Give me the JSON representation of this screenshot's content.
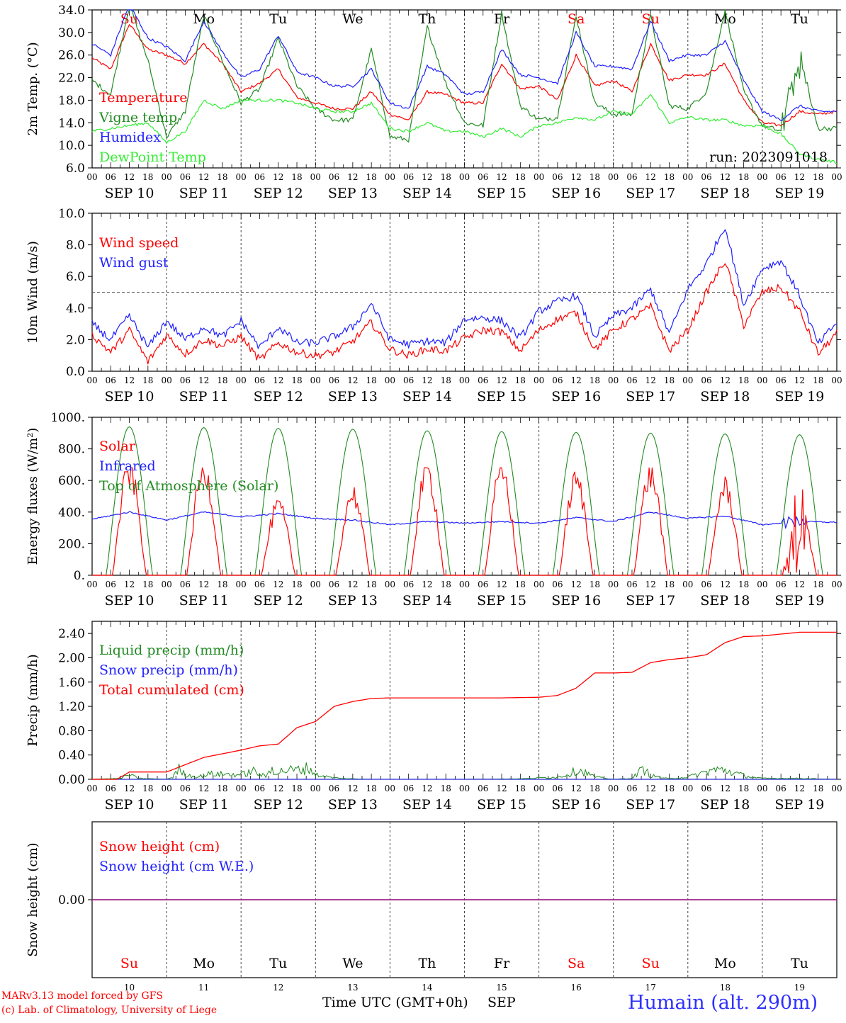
{
  "run_label": "run: 2023091018",
  "day_abbr": [
    "Su",
    "Mo",
    "Tu",
    "We",
    "Th",
    "Fr",
    "Sa",
    "Su",
    "Mo",
    "Tu"
  ],
  "weekend_flags": [
    true,
    false,
    false,
    false,
    false,
    false,
    true,
    true,
    false,
    false
  ],
  "date_labels": [
    "SEP 10",
    "SEP 11",
    "SEP 12",
    "SEP 13",
    "SEP 14",
    "SEP 15",
    "SEP 16",
    "SEP 17",
    "SEP 18",
    "SEP 19"
  ],
  "bottom_day_numbers": [
    "10",
    "11",
    "12",
    "13",
    "14",
    "15",
    "16",
    "17",
    "18",
    "19"
  ],
  "hour_labels": [
    "00",
    "06",
    "12",
    "18"
  ],
  "last_hour_label": "00",
  "footer": {
    "credit_line1": "MARv3.13 model forced by GFS",
    "credit_line2": "(c) Lab. of Climatology, University of Liege",
    "xaxis_label": "Time UTC (GMT+0h)",
    "month": "SEP",
    "station": "Humain (alt. 290m)"
  },
  "colors": {
    "red": "#ff0000",
    "green": "#228b22",
    "blue": "#2020ff",
    "lightgreen": "#33ee33",
    "purple": "#7a1fa0",
    "weekend": "#ff0000"
  },
  "chart_data": [
    {
      "id": "temp",
      "type": "line",
      "ylabel": "2m Temp. (°C)",
      "ylim": [
        6,
        34
      ],
      "yticks": [
        "34.0",
        "30.0",
        "26.0",
        "22.0",
        "18.0",
        "14.0",
        "10.0",
        "6.0"
      ],
      "ytick_values": [
        34,
        30,
        26,
        22,
        18,
        14,
        10,
        6
      ],
      "x_unit": "hours since SEP 10 00 UTC",
      "x": [
        0,
        6,
        12,
        18,
        24,
        30,
        36,
        42,
        48,
        54,
        60,
        66,
        72,
        78,
        84,
        90,
        96,
        102,
        108,
        114,
        120,
        126,
        132,
        138,
        144,
        150,
        156,
        162,
        168,
        174,
        180,
        186,
        192,
        198,
        204,
        210,
        216,
        222,
        228,
        234,
        240
      ],
      "series": [
        {
          "name": "Temperature",
          "color": "#ff0000",
          "values": [
            25.5,
            23.5,
            31.5,
            27,
            26,
            24.5,
            28,
            24.5,
            19.5,
            21,
            23.5,
            18.5,
            17.5,
            16.5,
            16.5,
            19.5,
            15.5,
            14.5,
            19.5,
            19,
            17.5,
            17.5,
            24.5,
            20,
            20.5,
            18,
            26,
            20.5,
            21.5,
            19.5,
            28,
            21.5,
            22.5,
            22.5,
            24.5,
            18,
            14,
            13.5,
            16,
            15.5,
            16
          ]
        },
        {
          "name": "Vigne temp",
          "color": "#228b22",
          "values": [
            21.5,
            19,
            35,
            25,
            11.5,
            16,
            33,
            25,
            17.5,
            20,
            29,
            20.5,
            16.5,
            14.5,
            14.5,
            27,
            11.5,
            11,
            31,
            21,
            14,
            13.5,
            33.5,
            17,
            14.5,
            15,
            33,
            17.5,
            15.5,
            15.5,
            33,
            17,
            16.5,
            19.5,
            34,
            19.5,
            13.5,
            12.5,
            25,
            13,
            13
          ]
        },
        {
          "name": "Humidex",
          "color": "#2020ff",
          "values": [
            28,
            26,
            35,
            29,
            27.5,
            25,
            32,
            26.5,
            22,
            23.5,
            29.5,
            23,
            22,
            20.5,
            20.5,
            23.5,
            17.5,
            16.5,
            24,
            22.5,
            19,
            19.5,
            27,
            22.5,
            22,
            21,
            30,
            24,
            24,
            23.5,
            32,
            25,
            26,
            26,
            28.5,
            21.5,
            16,
            14.5,
            17,
            16,
            16
          ]
        },
        {
          "name": "DewPoint Temp",
          "color": "#33ee33",
          "values": [
            12.5,
            13,
            13.5,
            14,
            10.5,
            12.5,
            18,
            16.5,
            18,
            18,
            18,
            17.5,
            16.5,
            16,
            16,
            17.5,
            13,
            12.5,
            14,
            12.5,
            12.5,
            11.5,
            13,
            11.5,
            13.5,
            14,
            15,
            14.5,
            16,
            15.5,
            19,
            14,
            15,
            14.5,
            14.5,
            13.5,
            13.5,
            12,
            8.5,
            7.5,
            7
          ]
        }
      ],
      "legend": [
        "Temperature",
        "Vigne temp",
        "Humidex",
        "DewPoint Temp"
      ],
      "legend_position": "left"
    },
    {
      "id": "wind",
      "type": "line",
      "ylabel": "10m Wind (m/s)",
      "ylim": [
        0,
        10
      ],
      "yticks": [
        "10.0",
        "8.0",
        "6.0",
        "4.0",
        "2.0",
        "0.0"
      ],
      "ytick_values": [
        10,
        8,
        6,
        4,
        2,
        0
      ],
      "x_unit": "hours since SEP 10 00 UTC",
      "reference_line": 5,
      "x": [
        0,
        6,
        12,
        18,
        24,
        30,
        36,
        42,
        48,
        54,
        60,
        66,
        72,
        78,
        84,
        90,
        96,
        102,
        108,
        114,
        120,
        126,
        132,
        138,
        144,
        150,
        156,
        162,
        168,
        174,
        180,
        186,
        192,
        198,
        204,
        210,
        216,
        222,
        228,
        234,
        240
      ],
      "series": [
        {
          "name": "Wind speed",
          "color": "#ff0000",
          "values": [
            2.3,
            1.2,
            2.6,
            0.6,
            2.3,
            1.1,
            2.0,
            1.6,
            2.2,
            0.7,
            1.8,
            1.2,
            1.0,
            1.2,
            1.9,
            3.1,
            1.4,
            1.0,
            1.4,
            1.3,
            2.1,
            2.6,
            2.5,
            1.3,
            2.6,
            3.3,
            3.7,
            1.4,
            2.6,
            3.3,
            4.1,
            1.3,
            2.6,
            5.0,
            7.0,
            2.9,
            5.0,
            5.3,
            3.8,
            1.1,
            2.4
          ]
        },
        {
          "name": "Wind gust",
          "color": "#2020ff",
          "values": [
            3.0,
            2.0,
            3.5,
            1.5,
            3.2,
            2.0,
            2.8,
            2.2,
            3.2,
            1.5,
            2.8,
            1.8,
            1.8,
            2.2,
            2.8,
            4.3,
            2.0,
            1.7,
            1.9,
            1.8,
            3.3,
            3.4,
            3.2,
            2.1,
            3.8,
            4.4,
            4.8,
            2.2,
            3.5,
            4.0,
            5.2,
            2.4,
            5.2,
            6.8,
            9.2,
            4.2,
            6.5,
            7.0,
            4.8,
            1.7,
            3.1
          ]
        }
      ],
      "legend": [
        "Wind speed",
        "Wind gust"
      ],
      "legend_position": "left"
    },
    {
      "id": "energy",
      "type": "line",
      "ylabel": "Energy fluxes (W/m²)",
      "ylim": [
        0,
        1000
      ],
      "yticks": [
        "1000.",
        "800.",
        "600.",
        "400.",
        "200.",
        "0."
      ],
      "ytick_values": [
        1000,
        800,
        600,
        400,
        200,
        0
      ],
      "x_unit": "hours since SEP 10 00 UTC",
      "solar_peaks": [
        650,
        660,
        430,
        510,
        650,
        650,
        590,
        630,
        550,
        640
      ],
      "toa_peaks": [
        940,
        935,
        930,
        925,
        915,
        910,
        905,
        900,
        895,
        890
      ],
      "infrared_x": [
        0,
        12,
        24,
        36,
        48,
        60,
        72,
        84,
        96,
        108,
        120,
        132,
        144,
        156,
        168,
        180,
        192,
        204,
        216,
        228,
        240
      ],
      "infrared_values": [
        355,
        400,
        350,
        400,
        370,
        390,
        360,
        350,
        320,
        340,
        330,
        340,
        330,
        365,
        340,
        400,
        360,
        375,
        320,
        340,
        335
      ],
      "series": [
        {
          "name": "Solar",
          "color": "#ff0000"
        },
        {
          "name": "Infrared",
          "color": "#2020ff"
        },
        {
          "name": "Top of Atmosphere (Solar)",
          "color": "#228b22"
        }
      ],
      "legend": [
        "Solar",
        "Infrared",
        "Top of Atmosphere (Solar)"
      ],
      "legend_position": "left"
    },
    {
      "id": "precip",
      "type": "line",
      "ylabel": "Precip (mm/h)",
      "ylim": [
        0,
        2.6
      ],
      "yticks": [
        "2.40",
        "2.00",
        "1.60",
        "1.20",
        "0.80",
        "0.40",
        "0.00"
      ],
      "ytick_values": [
        2.4,
        2.0,
        1.6,
        1.2,
        0.8,
        0.4,
        0.0
      ],
      "x_unit": "hours since SEP 10 00 UTC",
      "cumulated_x": [
        0,
        8,
        12,
        24,
        36,
        48,
        54,
        60,
        66,
        72,
        78,
        84,
        90,
        96,
        108,
        120,
        132,
        144,
        150,
        156,
        162,
        168,
        174,
        180,
        186,
        192,
        198,
        204,
        210,
        216,
        228,
        240
      ],
      "cumulated_values": [
        0,
        0,
        0.12,
        0.12,
        0.36,
        0.48,
        0.55,
        0.58,
        0.85,
        0.95,
        1.2,
        1.28,
        1.33,
        1.34,
        1.34,
        1.34,
        1.34,
        1.35,
        1.38,
        1.5,
        1.75,
        1.75,
        1.76,
        1.92,
        1.97,
        2.0,
        2.05,
        2.25,
        2.35,
        2.36,
        2.42,
        2.42
      ],
      "liquid_x": [
        0,
        9,
        12,
        15,
        24,
        26,
        28,
        30,
        34,
        38,
        48,
        52,
        56,
        58,
        60,
        62,
        66,
        70,
        72,
        76,
        80,
        84,
        90,
        96,
        108,
        120,
        138,
        150,
        154,
        156,
        158,
        162,
        168,
        174,
        176,
        178,
        180,
        186,
        192,
        196,
        200,
        204,
        208,
        212,
        216,
        228,
        240
      ],
      "liquid_values": [
        0,
        0.02,
        0.1,
        0.02,
        0,
        0.05,
        0.22,
        0.1,
        0.05,
        0.12,
        0.1,
        0.18,
        0.05,
        0.25,
        0.15,
        0.2,
        0.2,
        0.25,
        0.1,
        0.05,
        0.02,
        0.01,
        0,
        0,
        0,
        0,
        0.01,
        0.05,
        0.12,
        0.2,
        0.18,
        0.05,
        0,
        0.02,
        0.15,
        0.22,
        0.08,
        0.01,
        0.05,
        0.12,
        0.2,
        0.2,
        0.12,
        0.05,
        0.02,
        0.02,
        0
      ],
      "series": [
        {
          "name": "Liquid precip (mm/h)",
          "color": "#228b22"
        },
        {
          "name": "Snow precip (mm/h)",
          "color": "#2020ff"
        },
        {
          "name": "Total cumulated (cm)",
          "color": "#ff0000"
        }
      ],
      "legend": [
        "Liquid precip (mm/h)",
        "Snow precip (mm/h)",
        "Total cumulated (cm)"
      ],
      "legend_position": "left"
    },
    {
      "id": "snow",
      "type": "line",
      "ylabel": "Snow height (cm)",
      "yticks": [
        "0.00"
      ],
      "ytick_values": [
        0
      ],
      "x_unit": "hours since SEP 10 00 UTC",
      "x": [
        0,
        240
      ],
      "series": [
        {
          "name": "Snow height (cm)",
          "color": "#ff0000",
          "values": [
            0,
            0
          ]
        },
        {
          "name": "Snow height (cm W.E.)",
          "color": "#2020ff",
          "values": [
            0,
            0
          ]
        }
      ],
      "legend": [
        "Snow height (cm)",
        "Snow height (cm W.E.)"
      ],
      "legend_position": "left"
    }
  ]
}
